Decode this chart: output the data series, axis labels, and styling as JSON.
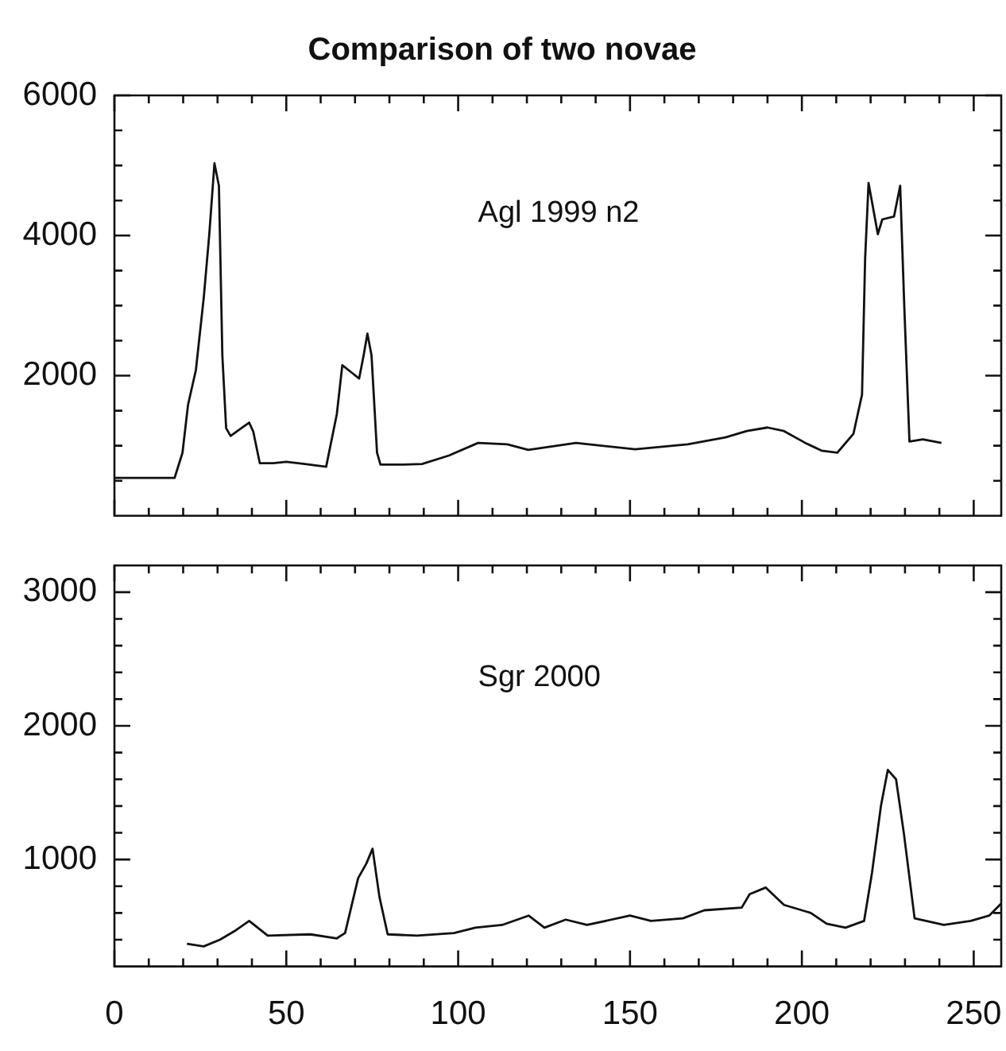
{
  "chart_data": [
    {
      "type": "line",
      "title": "Comparison of two novae",
      "xlim": [
        0,
        258
      ],
      "ylim": [
        0,
        6000
      ],
      "tick_labels": "y",
      "grid": false,
      "marker": "none",
      "xticks": [
        0,
        {
          "value": 10,
          "label": null
        },
        {
          "value": 20,
          "label": null
        },
        {
          "value": 30,
          "label": null
        },
        {
          "value": 40,
          "label": null
        },
        50,
        {
          "value": 60,
          "label": null
        },
        {
          "value": 70,
          "label": null
        },
        {
          "value": 80,
          "label": null
        },
        {
          "value": 90,
          "label": null
        },
        100,
        {
          "value": 110,
          "label": null
        },
        {
          "value": 120,
          "label": null
        },
        {
          "value": 130,
          "label": null
        },
        {
          "value": 140,
          "label": null
        },
        150,
        {
          "value": 160,
          "label": null
        },
        {
          "value": 170,
          "label": null
        },
        {
          "value": 180,
          "label": null
        },
        {
          "value": 190,
          "label": null
        },
        200,
        {
          "value": 210,
          "label": null
        },
        {
          "value": 220,
          "label": null
        },
        {
          "value": 230,
          "label": null
        },
        {
          "value": 240,
          "label": null
        },
        250
      ],
      "yticks": [
        {
          "value": 500,
          "label": null
        },
        {
          "value": 1000,
          "label": null
        },
        {
          "value": 1500,
          "label": null
        },
        2000,
        {
          "value": 2500,
          "label": null
        },
        {
          "value": 3000,
          "label": null
        },
        {
          "value": 3500,
          "label": null
        },
        4000,
        {
          "value": 4500,
          "label": null
        },
        {
          "value": 5000,
          "label": null
        },
        {
          "value": 5500,
          "label": null
        },
        6000
      ],
      "series": [
        {
          "name": "Agl 1999 n2",
          "color": "#111111",
          "x": [
            0,
            17.5,
            19.8,
            21.4,
            23.7,
            26.0,
            27.6,
            29.1,
            30.4,
            31.4,
            32.5,
            33.8,
            36.9,
            39.2,
            40.4,
            42.3,
            46.2,
            50.0,
            55.4,
            61.6,
            64.7,
            66.3,
            68.6,
            71.2,
            72.5,
            73.6,
            74.8,
            76.4,
            77.4,
            83.3,
            89.5,
            97.3,
            105.8,
            114.3,
            120.4,
            134.3,
            151.5,
            166.8,
            177.8,
            184,
            190,
            194.8,
            201,
            205.7,
            210.3,
            215,
            217.5,
            218.4,
            219.4,
            222.1,
            223.4,
            226.8,
            228.6,
            229.8,
            231.3,
            235.2,
            240.6
          ],
          "values": [
            540,
            540,
            900,
            1580,
            2080,
            3120,
            4020,
            5030,
            4710,
            2290,
            1250,
            1140,
            1250,
            1330,
            1200,
            750,
            750,
            770,
            740,
            700,
            1450,
            2150,
            2060,
            1960,
            2290,
            2600,
            2290,
            900,
            730,
            730,
            740,
            860,
            1040,
            1020,
            940,
            1040,
            950,
            1020,
            1120,
            1210,
            1260,
            1210,
            1040,
            930,
            900,
            1170,
            1730,
            3670,
            4750,
            4020,
            4230,
            4270,
            4710,
            2980,
            1060,
            1090,
            1040
          ]
        }
      ]
    },
    {
      "type": "line",
      "xlim": [
        0,
        258
      ],
      "ylim": [
        200,
        3200
      ],
      "grid": false,
      "marker": "none",
      "xticks": [
        0,
        {
          "value": 10,
          "label": null
        },
        {
          "value": 20,
          "label": null
        },
        {
          "value": 30,
          "label": null
        },
        {
          "value": 40,
          "label": null
        },
        50,
        {
          "value": 60,
          "label": null
        },
        {
          "value": 70,
          "label": null
        },
        {
          "value": 80,
          "label": null
        },
        {
          "value": 90,
          "label": null
        },
        100,
        {
          "value": 110,
          "label": null
        },
        {
          "value": 120,
          "label": null
        },
        {
          "value": 130,
          "label": null
        },
        {
          "value": 140,
          "label": null
        },
        150,
        {
          "value": 160,
          "label": null
        },
        {
          "value": 170,
          "label": null
        },
        {
          "value": 180,
          "label": null
        },
        {
          "value": 190,
          "label": null
        },
        200,
        {
          "value": 210,
          "label": null
        },
        {
          "value": 220,
          "label": null
        },
        {
          "value": 230,
          "label": null
        },
        {
          "value": 240,
          "label": null
        },
        250
      ],
      "yticks": [
        {
          "value": 400,
          "label": null
        },
        {
          "value": 600,
          "label": null
        },
        {
          "value": 800,
          "label": null
        },
        1000,
        {
          "value": 1200,
          "label": null
        },
        {
          "value": 1400,
          "label": null
        },
        {
          "value": 1600,
          "label": null
        },
        {
          "value": 1800,
          "label": null
        },
        2000,
        {
          "value": 2200,
          "label": null
        },
        {
          "value": 2400,
          "label": null
        },
        {
          "value": 2600,
          "label": null
        },
        {
          "value": 2800,
          "label": null
        },
        3000
      ],
      "series": [
        {
          "name": "Sgr 2000",
          "color": "#111111",
          "x": [
            21.1,
            26.0,
            30.7,
            35.3,
            39.2,
            44.6,
            57.0,
            64.7,
            67.1,
            70.9,
            73.3,
            75.1,
            77.1,
            79.5,
            88.0,
            98.8,
            105,
            112.8,
            120.5,
            125.1,
            131.3,
            137.5,
            150,
            156.1,
            165.4,
            171.6,
            182.5,
            184.8,
            189.5,
            194.8,
            202.6,
            207.2,
            212.7,
            218.1,
            220.4,
            223,
            225,
            227.4,
            229.7,
            232.8,
            241.3,
            249.1,
            254.5,
            258
          ],
          "values": [
            370,
            350,
            400,
            470,
            540,
            430,
            440,
            410,
            450,
            860,
            970,
            1080,
            720,
            440,
            430,
            450,
            490,
            510,
            580,
            490,
            550,
            510,
            580,
            540,
            560,
            620,
            640,
            740,
            790,
            660,
            600,
            520,
            490,
            540,
            900,
            1400,
            1670,
            1600,
            1190,
            560,
            510,
            540,
            580,
            670
          ]
        }
      ]
    }
  ]
}
